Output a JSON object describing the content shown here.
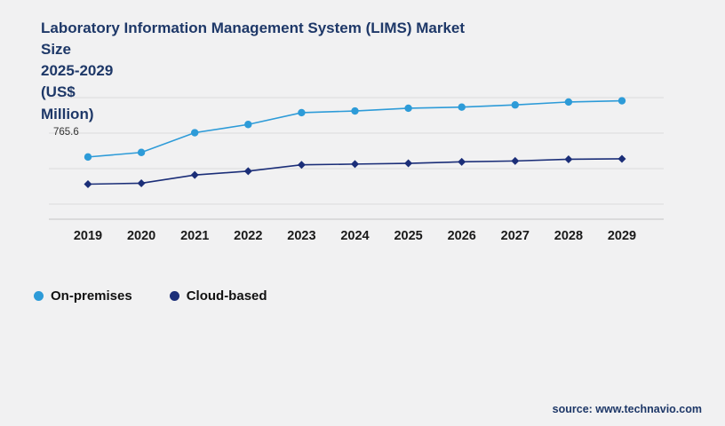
{
  "title": "Laboratory Information Management System (LIMS) Market\nSize\n2025-2029\n(US$\nMillion)",
  "source": "source: www.technavio.com",
  "colors": {
    "title": "#1e3868",
    "on_premises": "#2d9bd8",
    "cloud_based": "#1b2e78",
    "gridline": "#dcdcdc",
    "axis_line": "#c4c4c4",
    "background": "#f1f1f2"
  },
  "legend": [
    {
      "label": "On-premises",
      "color": "#2d9bd8"
    },
    {
      "label": "Cloud-based",
      "color": "#1b2e78"
    }
  ],
  "chart_data": {
    "type": "line",
    "title": "Laboratory Information Management System (LIMS) Market Size 2025-2029 (US$ Million)",
    "categories": [
      "2019",
      "2020",
      "2021",
      "2022",
      "2023",
      "2024",
      "2025",
      "2026",
      "2027",
      "2028",
      "2029"
    ],
    "series": [
      {
        "name": "On-premises",
        "color": "#2d9bd8",
        "marker": "circle",
        "values": [
          765.6,
          791.2,
          902.4,
          948.7,
          1015.3,
          1024.8,
          1040.2,
          1046.5,
          1058.9,
          1075.4,
          1082.1
        ]
      },
      {
        "name": "Cloud-based",
        "color": "#1b2e78",
        "marker": "diamond",
        "values": [
          612.5,
          617.8,
          664.2,
          685.9,
          721.4,
          725.6,
          729.8,
          738.3,
          743.1,
          752.6,
          755.2
        ]
      }
    ],
    "first_point_label": "765.6",
    "xlabel": "",
    "ylabel": "",
    "ylim": [
      450,
      1150
    ],
    "gridline_values": [
      500,
      700,
      900,
      1100
    ],
    "grid": true,
    "legend_position": "bottom-left",
    "y_axis_labels_visible": false
  }
}
